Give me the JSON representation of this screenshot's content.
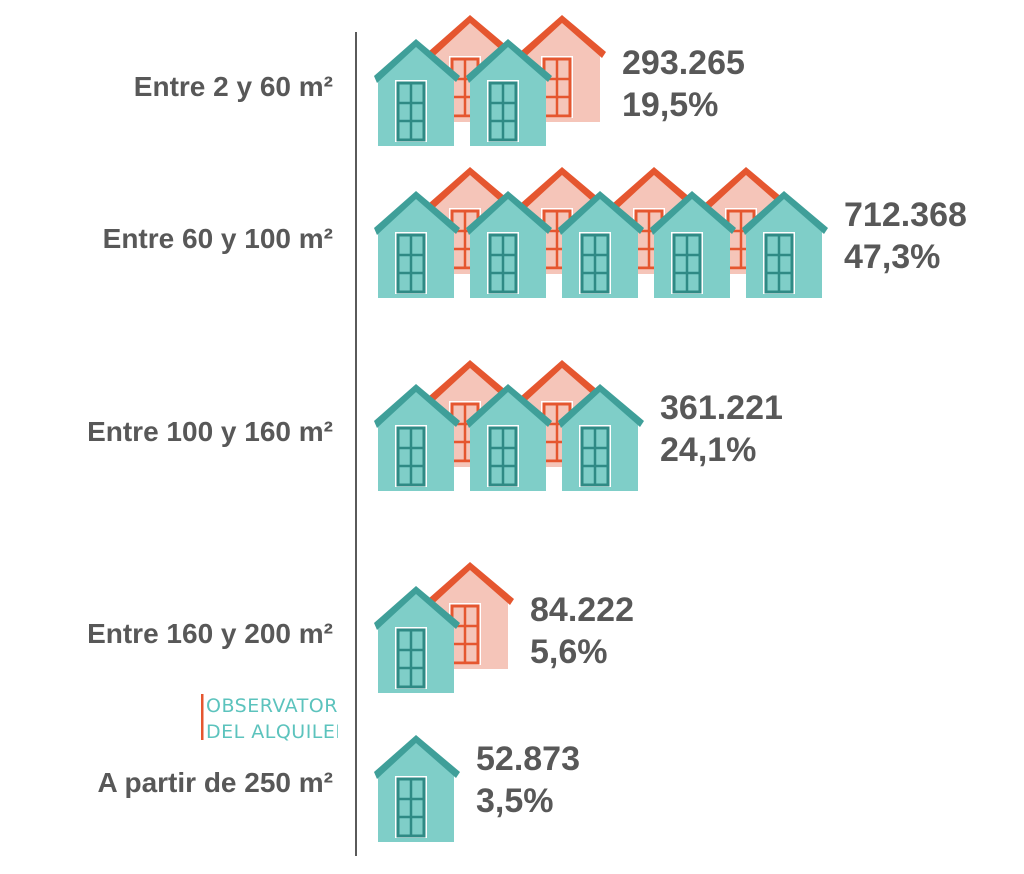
{
  "chart_data": {
    "type": "bar",
    "style": "pictogram",
    "icons": {
      "back": "house-icon-coral",
      "front": "house-icon-teal"
    },
    "colors": {
      "front_wall": "#7fcec8",
      "front_roof": "#3f9f99",
      "front_window": "#2f8a85",
      "back_wall": "#f5c5b9",
      "back_roof": "#e5562f",
      "back_window": "#e5562f",
      "text": "#585858",
      "axis": "#5a5a5a"
    },
    "categories": [
      "Entre 2 y 60 m²",
      "Entre 60 y 100 m²",
      "Entre 100 y 160 m²",
      "Entre 160 y 200 m²",
      "A partir de 250 m²"
    ],
    "values": [
      293265,
      712368,
      361221,
      84222,
      52873
    ],
    "value_labels": [
      "293.265",
      "712.368",
      "361.221",
      "84.222",
      "52.873"
    ],
    "percent": [
      19.5,
      47.3,
      24.1,
      5.6,
      3.5
    ],
    "percent_labels": [
      "19,5%",
      "47,3%",
      "24,1%",
      "5,6%",
      "3,5%"
    ],
    "front_icons": [
      2,
      5,
      3,
      1,
      1
    ],
    "back_icons": [
      2,
      4,
      2,
      1,
      0
    ]
  },
  "logo": {
    "line1": "OBSERVATORIO",
    "line2": "DEL ALQUILER"
  }
}
